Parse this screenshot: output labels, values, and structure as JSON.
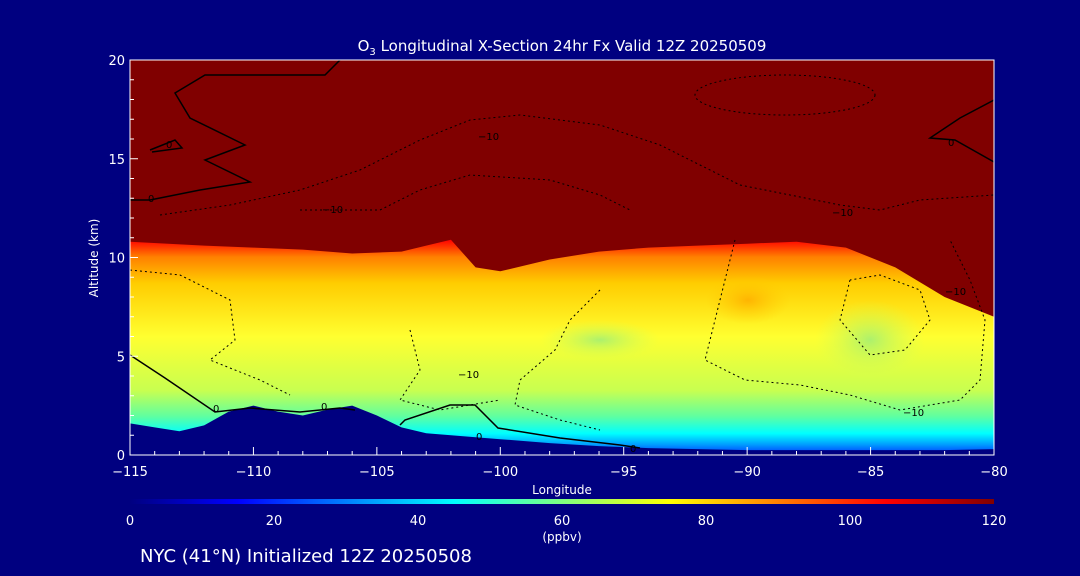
{
  "chart_data": {
    "type": "heatmap",
    "title_prefix": "O",
    "title_subscript": "3",
    "title_rest": " Longitudinal X-Section 24hr  Fx Valid 12Z 20250509",
    "xlabel": "Longitude",
    "ylabel": "Altitude (km)",
    "xlim": [
      -115,
      -80
    ],
    "ylim": [
      0,
      20
    ],
    "x_ticks": [
      -115,
      -110,
      -105,
      -100,
      -95,
      -90,
      -85,
      -80
    ],
    "x_tick_labels": [
      "−115",
      "−110",
      "−105",
      "−100",
      "−95",
      "−90",
      "−85",
      "−80"
    ],
    "y_ticks": [
      0,
      5,
      10,
      15,
      20
    ],
    "y_tick_labels": [
      "0",
      "5",
      "10",
      "15",
      "20"
    ],
    "colorbar": {
      "min": 0,
      "max": 120,
      "ticks": [
        0,
        20,
        40,
        60,
        80,
        100,
        120
      ],
      "tick_labels": [
        "0",
        "20",
        "40",
        "60",
        "80",
        "100",
        "120"
      ],
      "unit": "(ppbv)",
      "colors": [
        "#000080",
        "#0000ff",
        "#0080ff",
        "#00ffff",
        "#80ff80",
        "#ffff00",
        "#ff8000",
        "#ff0000",
        "#800000"
      ]
    },
    "terrain": {
      "lon": [
        -115,
        -114,
        -113,
        -112,
        -111,
        -110,
        -109,
        -108,
        -107,
        -106,
        -105,
        -104,
        -103,
        -102,
        -101,
        -100,
        -98,
        -96,
        -94,
        -92,
        -90,
        -88,
        -86,
        -84,
        -82,
        -80
      ],
      "height_km": [
        1.6,
        1.4,
        1.2,
        1.5,
        2.2,
        2.5,
        2.2,
        2.0,
        2.3,
        2.5,
        2.0,
        1.4,
        1.1,
        1.0,
        0.9,
        0.8,
        0.6,
        0.45,
        0.35,
        0.3,
        0.25,
        0.25,
        0.25,
        0.25,
        0.25,
        0.3
      ]
    },
    "field_bands": [
      {
        "ppbv": 120,
        "top_lon": [
          -115,
          -80
        ],
        "note": "stratosphere above tropopause"
      },
      {
        "ppbv": 30,
        "lon": [
          -115,
          -80
        ]
      }
    ],
    "tropopause_km": {
      "lon": [
        -115,
        -112,
        -110,
        -108,
        -106,
        -104,
        -103,
        -102,
        -101,
        -100,
        -98,
        -96,
        -94,
        -92,
        -90,
        -88,
        -86,
        -84,
        -82,
        -80
      ],
      "alt": [
        10.8,
        10.6,
        10.5,
        10.4,
        10.2,
        10.3,
        10.6,
        10.9,
        9.5,
        9.3,
        9.9,
        10.3,
        10.5,
        10.6,
        10.7,
        10.8,
        10.5,
        9.5,
        8.0,
        7.0
      ]
    },
    "contour_labels": [
      "0",
      "0",
      "0",
      "0",
      "0",
      "0",
      "0",
      "−10",
      "−10",
      "−10",
      "−10",
      "−10",
      "−10"
    ],
    "footer": "NYC (41°N) Initialized 12Z 20250508"
  }
}
